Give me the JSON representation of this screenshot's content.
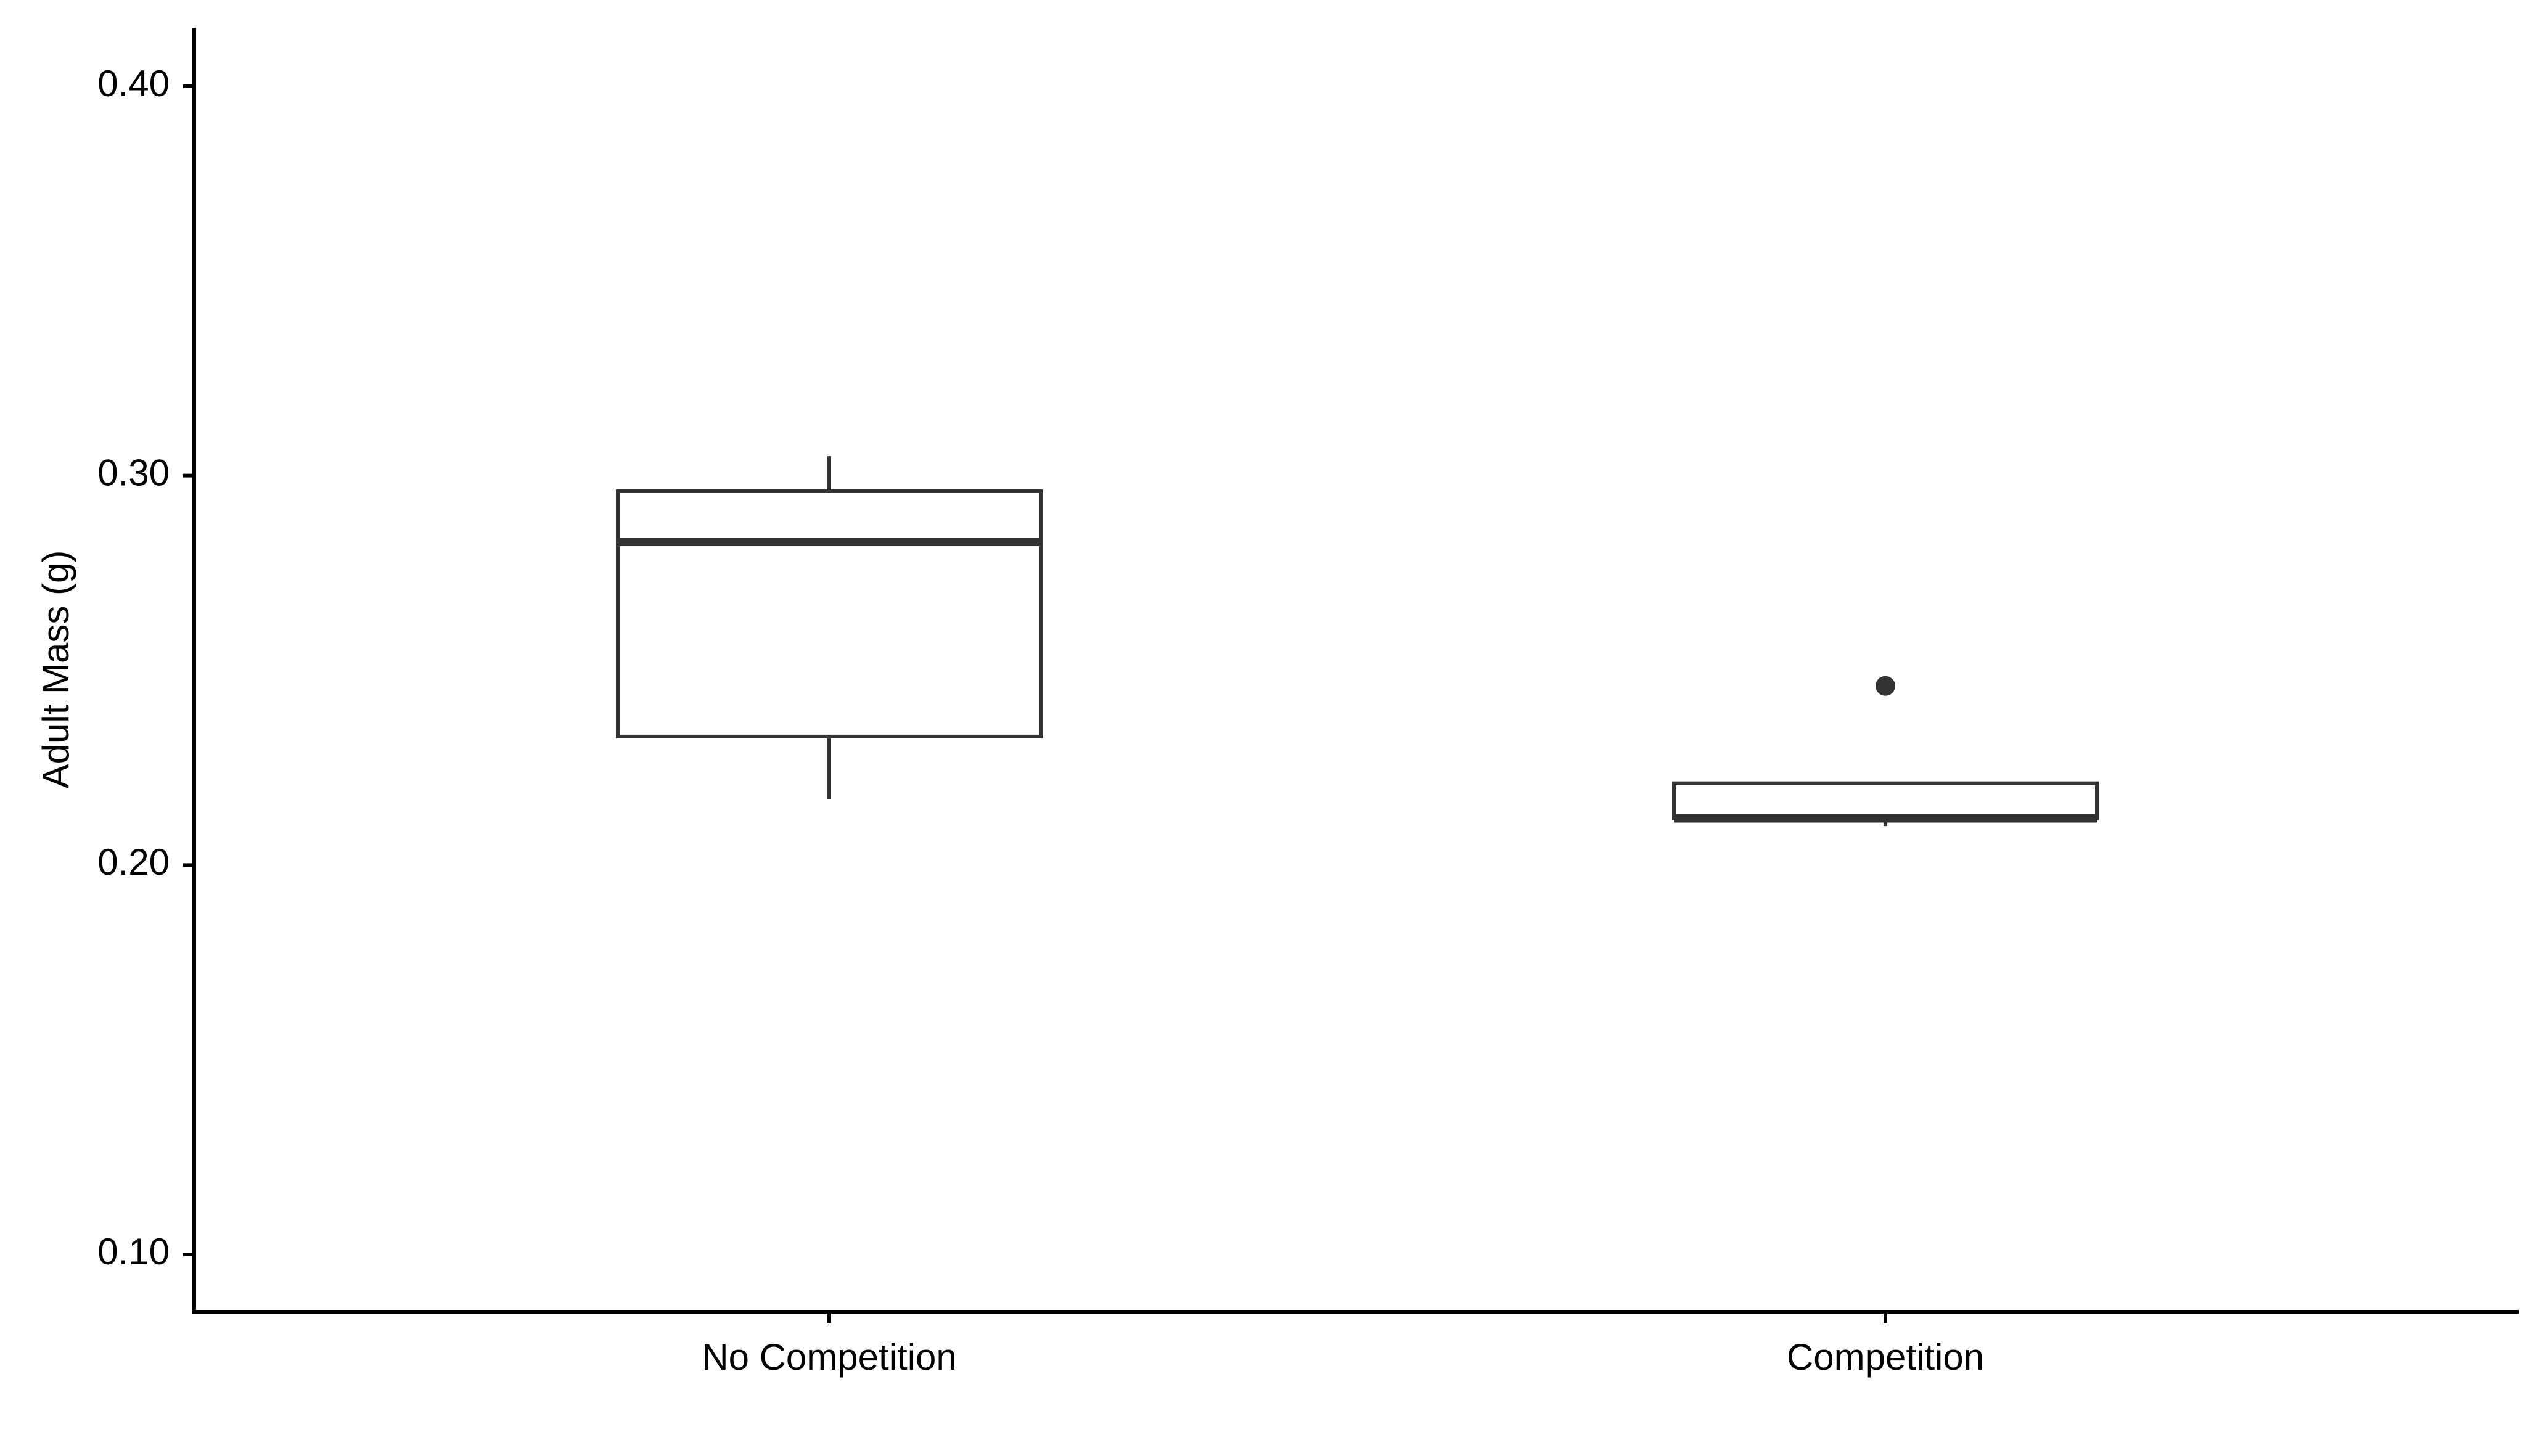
{
  "chart_data": {
    "type": "boxplot",
    "title": "",
    "xlabel": "",
    "ylabel": "Adult Mass (g)",
    "ylim": [
      0.085,
      0.415
    ],
    "yticks": [
      0.1,
      0.2,
      0.3,
      0.4
    ],
    "ytick_labels": [
      "0.10",
      "0.20",
      "0.30",
      "0.40"
    ],
    "categories": [
      "No Competition",
      "Competition"
    ],
    "boxes": [
      {
        "category": "No Competition",
        "whisker_low": 0.217,
        "q1": 0.233,
        "median": 0.283,
        "q3": 0.296,
        "whisker_high": 0.305,
        "outliers": []
      },
      {
        "category": "Competition",
        "whisker_low": 0.21,
        "q1": 0.212,
        "median": 0.212,
        "q3": 0.221,
        "whisker_high": 0.221,
        "outliers": [
          0.246
        ]
      }
    ],
    "grid": false,
    "colors": {
      "axis": "#000000",
      "box_stroke": "#333333",
      "box_fill": "#ffffff",
      "outlier": "#333333"
    }
  }
}
